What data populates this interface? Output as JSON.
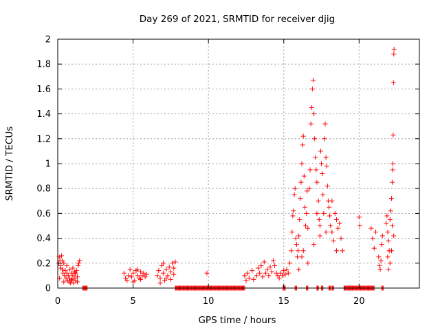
{
  "chart_data": {
    "type": "scatter",
    "title": "Day 269 of 2021, SRMTID for receiver djig",
    "xlabel": "GPS time / hours",
    "ylabel": "SRMTID / TECUs",
    "xlim": [
      0,
      24
    ],
    "ylim": [
      0,
      2
    ],
    "xticks": [
      0,
      5,
      10,
      15,
      20
    ],
    "xtick_labels": [
      "0",
      "5",
      "10",
      "15",
      "20"
    ],
    "yticks": [
      0,
      0.2,
      0.4,
      0.6,
      0.8,
      1,
      1.2,
      1.4,
      1.6,
      1.8,
      2
    ],
    "ytick_labels": [
      "0",
      "0.2",
      "0.4",
      "0.6",
      "0.8",
      "1",
      "1.2",
      "1.4",
      "1.6",
      "1.8",
      "2"
    ],
    "grid": true,
    "marker": "+",
    "color": "#ff0000",
    "series": [
      {
        "name": "SRMTID",
        "points": [
          [
            0.05,
            0.2
          ],
          [
            0.1,
            0.25
          ],
          [
            0.15,
            0.22
          ],
          [
            0.2,
            0.18
          ],
          [
            0.25,
            0.26
          ],
          [
            0.3,
            0.15
          ],
          [
            0.35,
            0.12
          ],
          [
            0.4,
            0.2
          ],
          [
            0.45,
            0.1
          ],
          [
            0.5,
            0.14
          ],
          [
            0.55,
            0.08
          ],
          [
            0.6,
            0.12
          ],
          [
            0.65,
            0.06
          ],
          [
            0.7,
            0.1
          ],
          [
            0.75,
            0.05
          ],
          [
            0.8,
            0.08
          ],
          [
            0.85,
            0.04
          ],
          [
            0.9,
            0.12
          ],
          [
            0.95,
            0.06
          ],
          [
            1.0,
            0.1
          ],
          [
            1.05,
            0.04
          ],
          [
            1.1,
            0.08
          ],
          [
            1.15,
            0.12
          ],
          [
            1.2,
            0.06
          ],
          [
            1.25,
            0.14
          ],
          [
            1.3,
            0.09
          ],
          [
            1.35,
            0.18
          ],
          [
            1.4,
            0.2
          ],
          [
            1.45,
            0.22
          ],
          [
            0.2,
            0.16
          ],
          [
            0.3,
            0.22
          ],
          [
            0.6,
            0.18
          ],
          [
            0.8,
            0.15
          ],
          [
            1.0,
            0.16
          ],
          [
            1.2,
            0.12
          ],
          [
            0.12,
            0.08
          ],
          [
            0.4,
            0.05
          ],
          [
            0.9,
            0.07
          ],
          [
            1.1,
            0.13
          ],
          [
            1.3,
            0.05
          ],
          [
            4.4,
            0.12
          ],
          [
            4.5,
            0.08
          ],
          [
            4.6,
            0.06
          ],
          [
            4.7,
            0.1
          ],
          [
            4.8,
            0.15
          ],
          [
            4.9,
            0.09
          ],
          [
            5.0,
            0.12
          ],
          [
            5.1,
            0.06
          ],
          [
            5.2,
            0.14
          ],
          [
            5.3,
            0.1
          ],
          [
            5.4,
            0.08
          ],
          [
            5.5,
            0.13
          ],
          [
            5.6,
            0.1
          ],
          [
            5.7,
            0.12
          ],
          [
            5.8,
            0.09
          ],
          [
            5.9,
            0.11
          ],
          [
            5.0,
            0.05
          ],
          [
            5.3,
            0.15
          ],
          [
            5.5,
            0.07
          ],
          [
            6.6,
            0.1
          ],
          [
            6.7,
            0.14
          ],
          [
            6.8,
            0.08
          ],
          [
            6.9,
            0.18
          ],
          [
            7.0,
            0.12
          ],
          [
            7.1,
            0.06
          ],
          [
            7.2,
            0.15
          ],
          [
            7.3,
            0.1
          ],
          [
            7.4,
            0.17
          ],
          [
            7.5,
            0.13
          ],
          [
            7.6,
            0.2
          ],
          [
            7.7,
            0.16
          ],
          [
            7.8,
            0.21
          ],
          [
            6.8,
            0.04
          ],
          [
            7.0,
            0.2
          ],
          [
            7.2,
            0.08
          ],
          [
            7.5,
            0.07
          ],
          [
            7.7,
            0.11
          ],
          [
            9.9,
            0.12
          ],
          [
            12.4,
            0.1
          ],
          [
            12.5,
            0.06
          ],
          [
            12.6,
            0.12
          ],
          [
            12.7,
            0.08
          ],
          [
            12.9,
            0.14
          ],
          [
            13.0,
            0.07
          ],
          [
            13.2,
            0.1
          ],
          [
            13.3,
            0.16
          ],
          [
            13.4,
            0.12
          ],
          [
            13.5,
            0.18
          ],
          [
            13.6,
            0.09
          ],
          [
            13.7,
            0.21
          ],
          [
            13.8,
            0.12
          ],
          [
            13.9,
            0.15
          ],
          [
            14.0,
            0.1
          ],
          [
            14.1,
            0.17
          ],
          [
            14.2,
            0.13
          ],
          [
            14.3,
            0.22
          ],
          [
            14.4,
            0.18
          ],
          [
            14.5,
            0.12
          ],
          [
            14.6,
            0.1
          ],
          [
            14.7,
            0.08
          ],
          [
            14.8,
            0.12
          ],
          [
            14.9,
            0.1
          ],
          [
            15.0,
            0.14
          ],
          [
            15.1,
            0.11
          ],
          [
            15.2,
            0.15
          ],
          [
            15.3,
            0.12
          ],
          [
            15.4,
            0.2
          ],
          [
            15.5,
            0.3
          ],
          [
            15.55,
            0.45
          ],
          [
            15.6,
            0.58
          ],
          [
            15.65,
            0.62
          ],
          [
            15.7,
            0.75
          ],
          [
            15.75,
            0.8
          ],
          [
            15.8,
            0.4
          ],
          [
            15.85,
            0.35
          ],
          [
            15.9,
            0.25
          ],
          [
            15.95,
            0.3
          ],
          [
            16.0,
            0.42
          ],
          [
            16.05,
            0.55
          ],
          [
            16.1,
            0.72
          ],
          [
            16.15,
            0.85
          ],
          [
            16.2,
            1.0
          ],
          [
            16.25,
            1.15
          ],
          [
            16.3,
            1.22
          ],
          [
            16.35,
            0.9
          ],
          [
            16.4,
            0.65
          ],
          [
            16.45,
            0.5
          ],
          [
            16.5,
            0.6
          ],
          [
            16.55,
            0.78
          ],
          [
            16.6,
            0.48
          ],
          [
            16.7,
            0.8
          ],
          [
            16.75,
            0.95
          ],
          [
            16.8,
            1.32
          ],
          [
            16.85,
            1.45
          ],
          [
            16.9,
            1.6
          ],
          [
            16.95,
            1.67
          ],
          [
            17.0,
            1.4
          ],
          [
            17.05,
            1.2
          ],
          [
            17.1,
            1.05
          ],
          [
            17.15,
            0.95
          ],
          [
            17.2,
            0.85
          ],
          [
            17.3,
            0.7
          ],
          [
            17.35,
            0.55
          ],
          [
            17.4,
            0.42
          ],
          [
            17.45,
            1.1
          ],
          [
            17.5,
            1.0
          ],
          [
            17.55,
            0.92
          ],
          [
            17.6,
            0.75
          ],
          [
            17.65,
            0.6
          ],
          [
            17.7,
            1.2
          ],
          [
            17.75,
            1.32
          ],
          [
            17.8,
            1.05
          ],
          [
            17.85,
            0.98
          ],
          [
            17.9,
            0.82
          ],
          [
            17.95,
            0.7
          ],
          [
            18.0,
            0.65
          ],
          [
            18.05,
            0.58
          ],
          [
            18.1,
            0.5
          ],
          [
            18.2,
            0.45
          ],
          [
            18.3,
            0.38
          ],
          [
            18.4,
            0.6
          ],
          [
            18.5,
            0.55
          ],
          [
            18.6,
            0.48
          ],
          [
            18.7,
            0.52
          ],
          [
            18.8,
            0.4
          ],
          [
            18.9,
            0.3
          ],
          [
            16.3,
            0.3
          ],
          [
            16.6,
            0.2
          ],
          [
            17.0,
            0.35
          ],
          [
            17.4,
            0.5
          ],
          [
            17.8,
            0.45
          ],
          [
            16.0,
            0.15
          ],
          [
            16.2,
            0.25
          ],
          [
            17.2,
            0.6
          ],
          [
            18.2,
            0.7
          ],
          [
            18.5,
            0.3
          ],
          [
            20.0,
            0.57
          ],
          [
            20.05,
            0.5
          ],
          [
            20.8,
            0.48
          ],
          [
            20.9,
            0.4
          ],
          [
            21.0,
            0.32
          ],
          [
            21.1,
            0.45
          ],
          [
            21.3,
            0.25
          ],
          [
            21.35,
            0.18
          ],
          [
            21.4,
            0.15
          ],
          [
            21.45,
            0.22
          ],
          [
            21.5,
            0.35
          ],
          [
            21.55,
            0.42
          ],
          [
            21.8,
            0.52
          ],
          [
            21.85,
            0.58
          ],
          [
            21.9,
            0.45
          ],
          [
            21.95,
            0.38
          ],
          [
            22.0,
            0.3
          ],
          [
            22.05,
            0.55
          ],
          [
            22.1,
            0.62
          ],
          [
            22.15,
            0.72
          ],
          [
            22.2,
            0.85
          ],
          [
            22.22,
            0.95
          ],
          [
            22.24,
            1.0
          ],
          [
            22.26,
            1.23
          ],
          [
            22.28,
            1.65
          ],
          [
            22.3,
            1.88
          ],
          [
            22.32,
            1.92
          ],
          [
            22.05,
            0.2
          ],
          [
            21.9,
            0.25
          ],
          [
            22.2,
            0.5
          ],
          [
            22.3,
            0.42
          ],
          [
            21.95,
            0.15
          ],
          [
            22.15,
            0.3
          ]
        ]
      }
    ],
    "zero_band": [
      [
        1.65,
        1.95
      ],
      [
        7.8,
        10.0
      ],
      [
        10.0,
        12.4
      ],
      [
        14.95,
        15.1
      ],
      [
        15.75,
        15.85
      ],
      [
        16.5,
        16.6
      ],
      [
        17.2,
        17.3
      ],
      [
        17.5,
        17.6
      ],
      [
        18.0,
        18.1
      ],
      [
        18.2,
        18.3
      ],
      [
        19.0,
        21.0
      ],
      [
        21.5,
        21.6
      ]
    ]
  }
}
